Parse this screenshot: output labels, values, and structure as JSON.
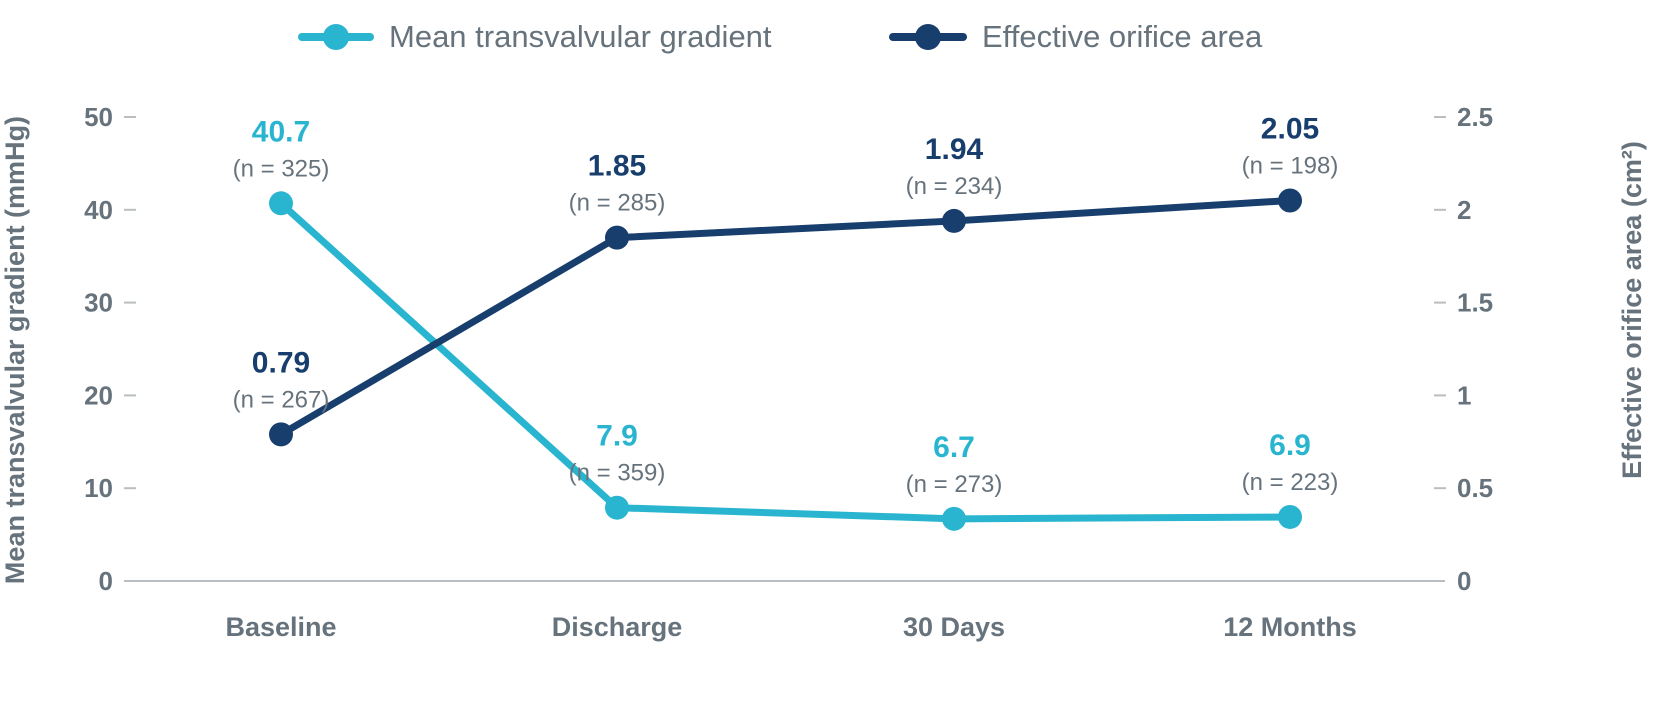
{
  "chart_data": {
    "type": "line",
    "categories": [
      "Baseline",
      "Discharge",
      "30 Days",
      "12 Months"
    ],
    "series": [
      {
        "name": "Mean transvalvular gradient",
        "axis": "left",
        "color": "#29b5cf",
        "values": [
          40.7,
          7.9,
          6.7,
          6.9
        ],
        "value_labels": [
          "40.7",
          "7.9",
          "6.7",
          "6.9"
        ],
        "n_labels": [
          "(n = 325)",
          "(n = 359)",
          "(n = 273)",
          "(n = 223)"
        ]
      },
      {
        "name": "Effective orifice area",
        "axis": "right",
        "color": "#173e6d",
        "values": [
          0.79,
          1.85,
          1.94,
          2.05
        ],
        "value_labels": [
          "0.79",
          "1.85",
          "1.94",
          "2.05"
        ],
        "n_labels": [
          "(n = 267)",
          "(n = 285)",
          "(n = 234)",
          "(n = 198)"
        ]
      }
    ],
    "left_axis": {
      "label": "Mean transvalvular gradient (mmHg)",
      "ylim": [
        0,
        50
      ],
      "ticks": [
        "0",
        "10",
        "20",
        "30",
        "40",
        "50"
      ],
      "tick_values": [
        0,
        10,
        20,
        30,
        40,
        50
      ]
    },
    "right_axis": {
      "label": "Effective orifice area (cm²)",
      "ylim": [
        0,
        2.5
      ],
      "ticks": [
        "0",
        "0.5",
        "1",
        "1.5",
        "2",
        "2.5"
      ],
      "tick_values": [
        0,
        0.5,
        1,
        1.5,
        2,
        2.5
      ]
    },
    "legend_placement": "top-center",
    "grid": false
  }
}
